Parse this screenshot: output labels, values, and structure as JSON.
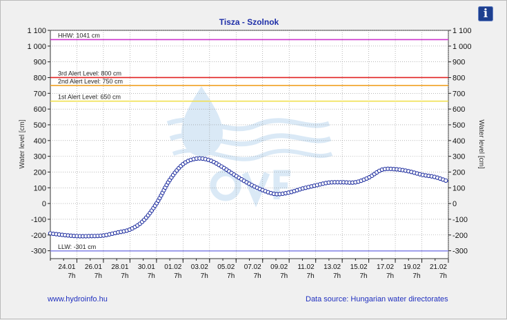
{
  "colors": {
    "title": "#1e2ea8",
    "series_line": "#2b3fa8",
    "marker_fill": "#ffffff",
    "marker_stroke": "#2231a0",
    "hhw": "#cc33cc",
    "alert3": "#e02020",
    "alert2": "#f0a020",
    "alert1": "#f0e050",
    "llw": "#8a8ae8",
    "grid": "#8a8a8a",
    "watermark": "#bcd8f0"
  },
  "header": {
    "info_icon": "info-icon",
    "info_label": "i"
  },
  "footer": {
    "site_link": "www.hydroinfo.hu",
    "source": "Data source: Hungarian water directorates"
  },
  "chart_data": {
    "type": "line",
    "title": "Tisza - Szolnok",
    "ylabel": "Water level [cm]",
    "ylabel_right": "Water level [cm]",
    "ylim": [
      -350,
      1100
    ],
    "yticks": [
      1100,
      1000,
      900,
      800,
      700,
      600,
      500,
      400,
      300,
      200,
      100,
      0,
      -100,
      -200,
      -300
    ],
    "ytick_labels": [
      "1 100",
      "1 000",
      "900",
      "800",
      "700",
      "600",
      "500",
      "400",
      "300",
      "200",
      "100",
      "0",
      "-100",
      "-200",
      "-300"
    ],
    "x_start": "22.01 7h",
    "x_end": "21.02 7h",
    "x_ticks": [
      {
        "date": "24.01",
        "time": "7h"
      },
      {
        "date": "26.01",
        "time": "7h"
      },
      {
        "date": "28.01",
        "time": "7h"
      },
      {
        "date": "30.01",
        "time": "7h"
      },
      {
        "date": "01.02",
        "time": "7h"
      },
      {
        "date": "03.02",
        "time": "7h"
      },
      {
        "date": "05.02",
        "time": "7h"
      },
      {
        "date": "07.02",
        "time": "7h"
      },
      {
        "date": "09.02",
        "time": "7h"
      },
      {
        "date": "11.02",
        "time": "7h"
      },
      {
        "date": "13.02",
        "time": "7h"
      },
      {
        "date": "15.02",
        "time": "7h"
      },
      {
        "date": "17.02",
        "time": "7h"
      },
      {
        "date": "19.02",
        "time": "7h"
      },
      {
        "date": "21.02",
        "time": "7h"
      }
    ],
    "grid": true,
    "reference_lines": [
      {
        "label": "HHW: 1041 cm",
        "value": 1041,
        "color_key": "hhw"
      },
      {
        "label": "3rd Alert Level: 800 cm",
        "value": 800,
        "color_key": "alert3"
      },
      {
        "label": "2nd Alert Level: 750 cm",
        "value": 750,
        "color_key": "alert2"
      },
      {
        "label": "1st Alert Level: 650 cm",
        "value": 650,
        "color_key": "alert1"
      },
      {
        "label": "LLW: -301 cm",
        "value": -301,
        "color_key": "llw"
      }
    ],
    "series": [
      {
        "points": [
          [
            "22.01 7h",
            -190
          ],
          [
            "23.01 7h",
            -200
          ],
          [
            "24.01 7h",
            -207
          ],
          [
            "25.01 7h",
            -207
          ],
          [
            "26.01 7h",
            -203
          ],
          [
            "27.01 7h",
            -185
          ],
          [
            "28.01 7h",
            -165
          ],
          [
            "29.01 7h",
            -110
          ],
          [
            "30.01 7h",
            0
          ],
          [
            "31.01 7h",
            150
          ],
          [
            "01.02 7h",
            250
          ],
          [
            "02.02 7h",
            285
          ],
          [
            "03.02 7h",
            275
          ],
          [
            "04.02 7h",
            230
          ],
          [
            "05.02 7h",
            175
          ],
          [
            "06.02 7h",
            125
          ],
          [
            "07.02 7h",
            85
          ],
          [
            "08.02 7h",
            60
          ],
          [
            "09.02 7h",
            70
          ],
          [
            "10.02 7h",
            95
          ],
          [
            "11.02 7h",
            115
          ],
          [
            "12.02 7h",
            133
          ],
          [
            "13.02 7h",
            135
          ],
          [
            "14.02 7h",
            135
          ],
          [
            "15.02 7h",
            165
          ],
          [
            "16.02 7h",
            215
          ],
          [
            "17.02 7h",
            218
          ],
          [
            "18.02 7h",
            205
          ],
          [
            "19.02 7h",
            183
          ],
          [
            "20.02 7h",
            168
          ],
          [
            "21.02 7h",
            140
          ]
        ]
      }
    ]
  }
}
